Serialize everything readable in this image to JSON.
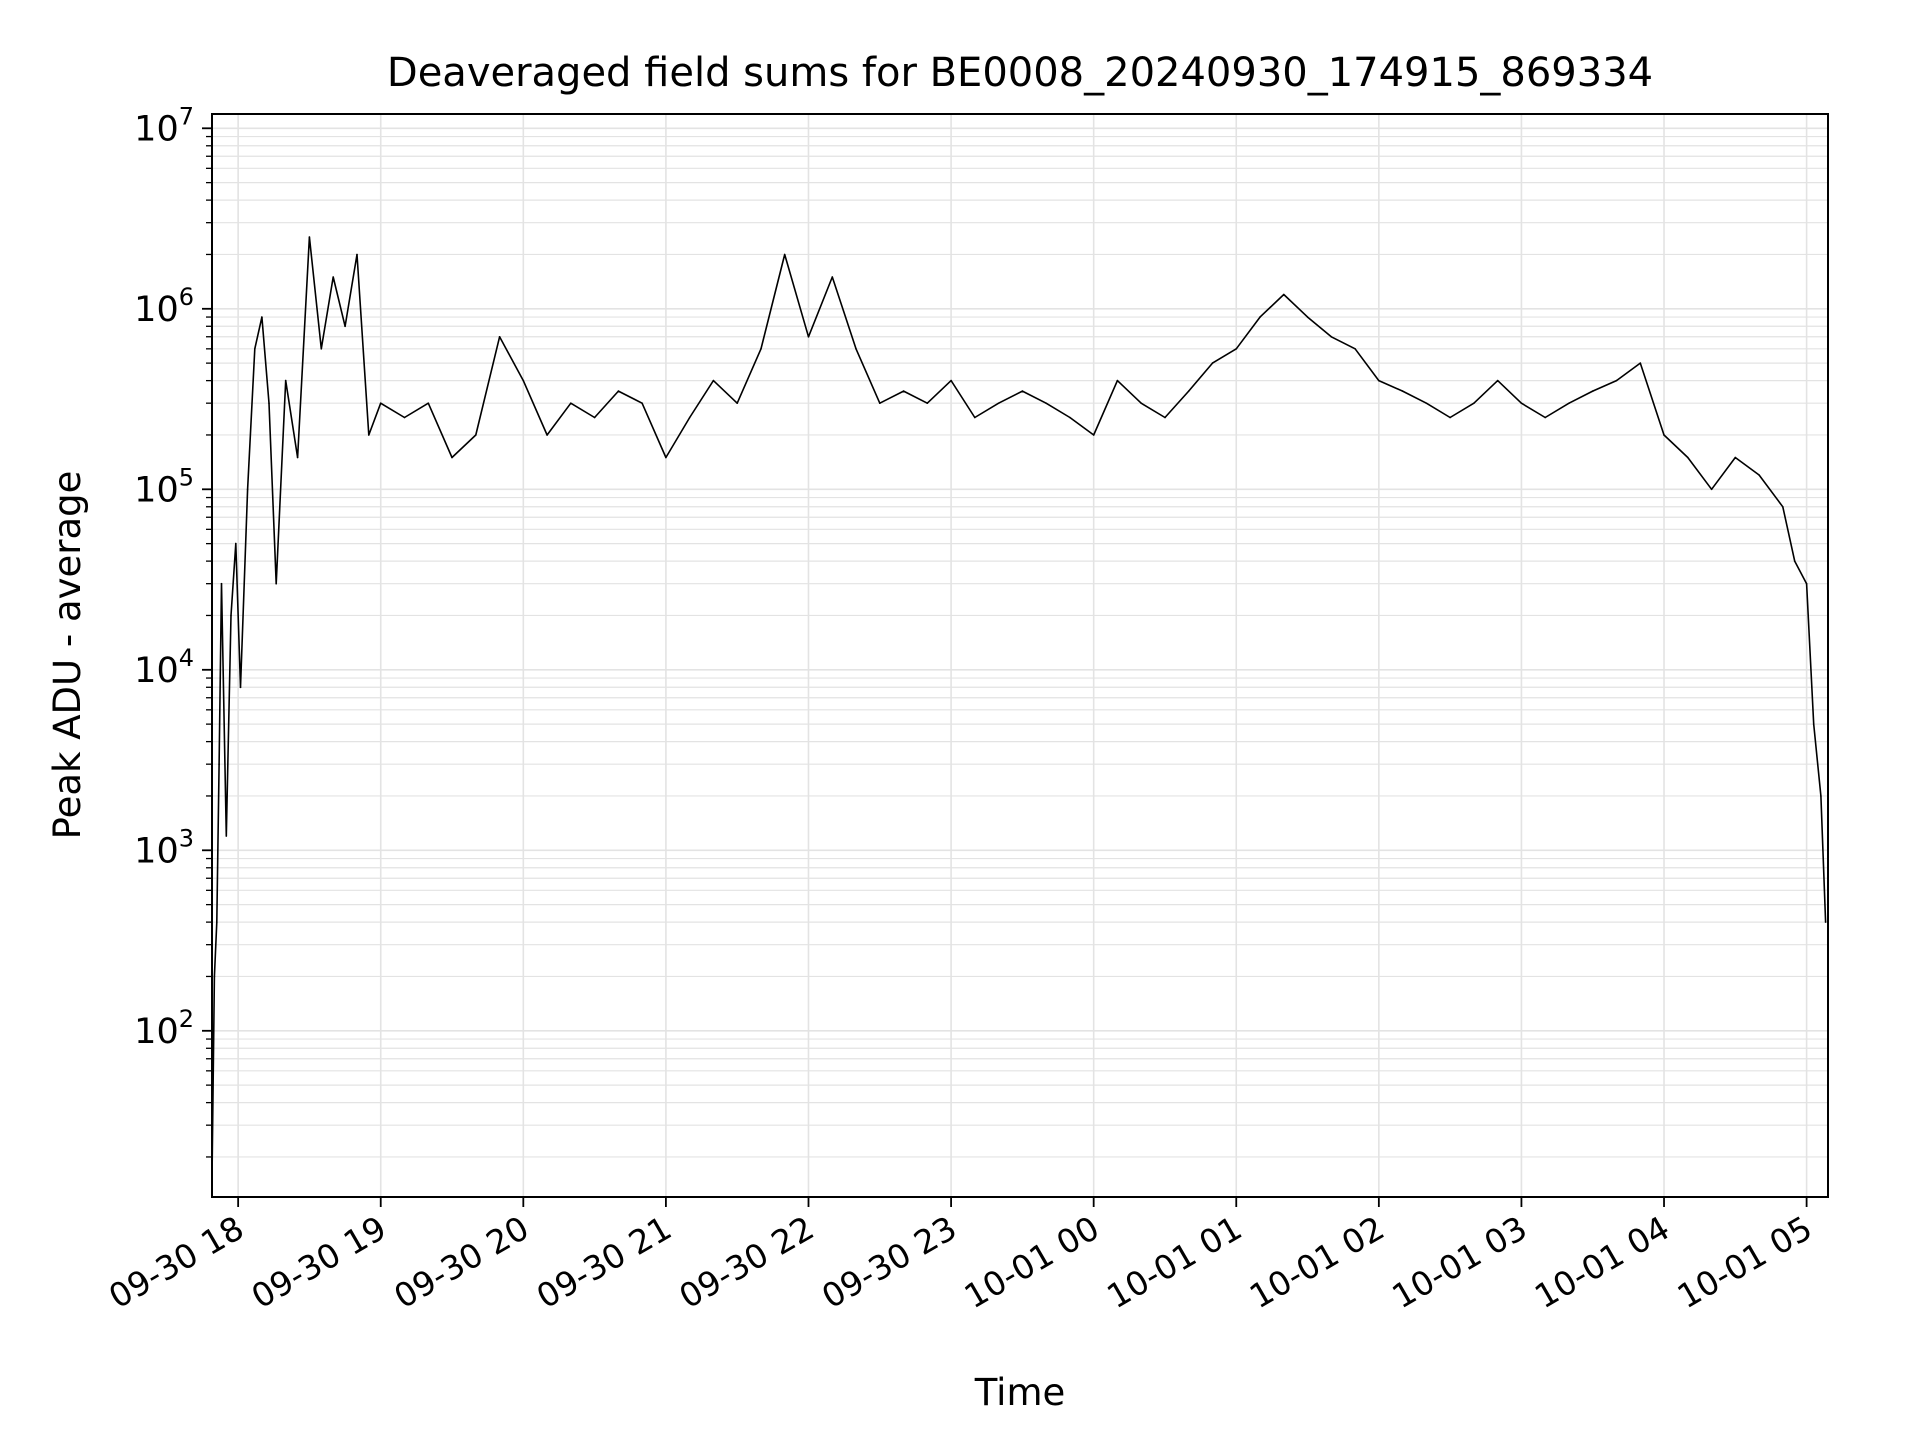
{
  "chart_data": {
    "type": "line",
    "title": "Deaveraged field sums for BE0008_20240930_174915_869334",
    "xlabel": "Time",
    "ylabel": "Peak ADU - average",
    "yscale": "log",
    "ylim": [
      12,
      12000000
    ],
    "xlim": [
      "2024-09-30 17:49",
      "2024-10-01 05:09"
    ],
    "grid": true,
    "line_color": "#000000",
    "grid_color": "#e3e3e3",
    "x_ticks": [
      {
        "value": "2024-09-30 18:00",
        "label": "09-30 18"
      },
      {
        "value": "2024-09-30 19:00",
        "label": "09-30 19"
      },
      {
        "value": "2024-09-30 20:00",
        "label": "09-30 20"
      },
      {
        "value": "2024-09-30 21:00",
        "label": "09-30 21"
      },
      {
        "value": "2024-09-30 22:00",
        "label": "09-30 22"
      },
      {
        "value": "2024-09-30 23:00",
        "label": "09-30 23"
      },
      {
        "value": "2024-10-01 00:00",
        "label": "10-01 00"
      },
      {
        "value": "2024-10-01 01:00",
        "label": "10-01 01"
      },
      {
        "value": "2024-10-01 02:00",
        "label": "10-01 02"
      },
      {
        "value": "2024-10-01 03:00",
        "label": "10-01 03"
      },
      {
        "value": "2024-10-01 04:00",
        "label": "10-01 04"
      },
      {
        "value": "2024-10-01 05:00",
        "label": "10-01 05"
      }
    ],
    "y_ticks": [
      {
        "value": 100,
        "base": "10",
        "exp": "2"
      },
      {
        "value": 1000,
        "base": "10",
        "exp": "3"
      },
      {
        "value": 10000,
        "base": "10",
        "exp": "4"
      },
      {
        "value": 100000,
        "base": "10",
        "exp": "5"
      },
      {
        "value": 1000000,
        "base": "10",
        "exp": "6"
      },
      {
        "value": 10000000,
        "base": "10",
        "exp": "7"
      }
    ],
    "series": [
      {
        "x": [
          "2024-09-30 17:49",
          "2024-09-30 17:50",
          "2024-09-30 17:51",
          "2024-09-30 17:52",
          "2024-09-30 17:53",
          "2024-09-30 17:55",
          "2024-09-30 17:57",
          "2024-09-30 17:59",
          "2024-09-30 18:01",
          "2024-09-30 18:04",
          "2024-09-30 18:07",
          "2024-09-30 18:10",
          "2024-09-30 18:13",
          "2024-09-30 18:16",
          "2024-09-30 18:20",
          "2024-09-30 18:25",
          "2024-09-30 18:30",
          "2024-09-30 18:35",
          "2024-09-30 18:40",
          "2024-09-30 18:45",
          "2024-09-30 18:50",
          "2024-09-30 18:55",
          "2024-09-30 19:00",
          "2024-09-30 19:10",
          "2024-09-30 19:20",
          "2024-09-30 19:30",
          "2024-09-30 19:40",
          "2024-09-30 19:50",
          "2024-09-30 20:00",
          "2024-09-30 20:10",
          "2024-09-30 20:20",
          "2024-09-30 20:30",
          "2024-09-30 20:40",
          "2024-09-30 20:50",
          "2024-09-30 21:00",
          "2024-09-30 21:10",
          "2024-09-30 21:20",
          "2024-09-30 21:30",
          "2024-09-30 21:40",
          "2024-09-30 21:50",
          "2024-09-30 22:00",
          "2024-09-30 22:10",
          "2024-09-30 22:20",
          "2024-09-30 22:30",
          "2024-09-30 22:40",
          "2024-09-30 22:50",
          "2024-09-30 23:00",
          "2024-09-30 23:10",
          "2024-09-30 23:20",
          "2024-09-30 23:30",
          "2024-09-30 23:40",
          "2024-09-30 23:50",
          "2024-10-01 00:00",
          "2024-10-01 00:10",
          "2024-10-01 00:20",
          "2024-10-01 00:30",
          "2024-10-01 00:40",
          "2024-10-01 00:50",
          "2024-10-01 01:00",
          "2024-10-01 01:10",
          "2024-10-01 01:20",
          "2024-10-01 01:30",
          "2024-10-01 01:40",
          "2024-10-01 01:50",
          "2024-10-01 02:00",
          "2024-10-01 02:10",
          "2024-10-01 02:20",
          "2024-10-01 02:30",
          "2024-10-01 02:40",
          "2024-10-01 02:50",
          "2024-10-01 03:00",
          "2024-10-01 03:10",
          "2024-10-01 03:20",
          "2024-10-01 03:30",
          "2024-10-01 03:40",
          "2024-10-01 03:50",
          "2024-10-01 04:00",
          "2024-10-01 04:10",
          "2024-10-01 04:20",
          "2024-10-01 04:30",
          "2024-10-01 04:40",
          "2024-10-01 04:50",
          "2024-10-01 04:55",
          "2024-10-01 05:00",
          "2024-10-01 05:03",
          "2024-10-01 05:06",
          "2024-10-01 05:08"
        ],
        "y": [
          15,
          200,
          400,
          3000,
          30000,
          1200,
          20000,
          50000,
          8000,
          100000,
          600000,
          900000,
          300000,
          30000,
          400000,
          150000,
          2500000,
          600000,
          1500000,
          800000,
          2000000,
          200000,
          300000,
          250000,
          300000,
          150000,
          200000,
          700000,
          400000,
          200000,
          300000,
          250000,
          350000,
          300000,
          150000,
          250000,
          400000,
          300000,
          600000,
          2000000,
          700000,
          1500000,
          600000,
          300000,
          350000,
          300000,
          400000,
          250000,
          300000,
          350000,
          300000,
          250000,
          200000,
          400000,
          300000,
          250000,
          350000,
          500000,
          600000,
          900000,
          1200000,
          900000,
          700000,
          600000,
          400000,
          350000,
          300000,
          250000,
          300000,
          400000,
          300000,
          250000,
          300000,
          350000,
          400000,
          500000,
          200000,
          150000,
          100000,
          150000,
          120000,
          80000,
          40000,
          30000,
          5000,
          2000,
          400
        ]
      }
    ]
  }
}
